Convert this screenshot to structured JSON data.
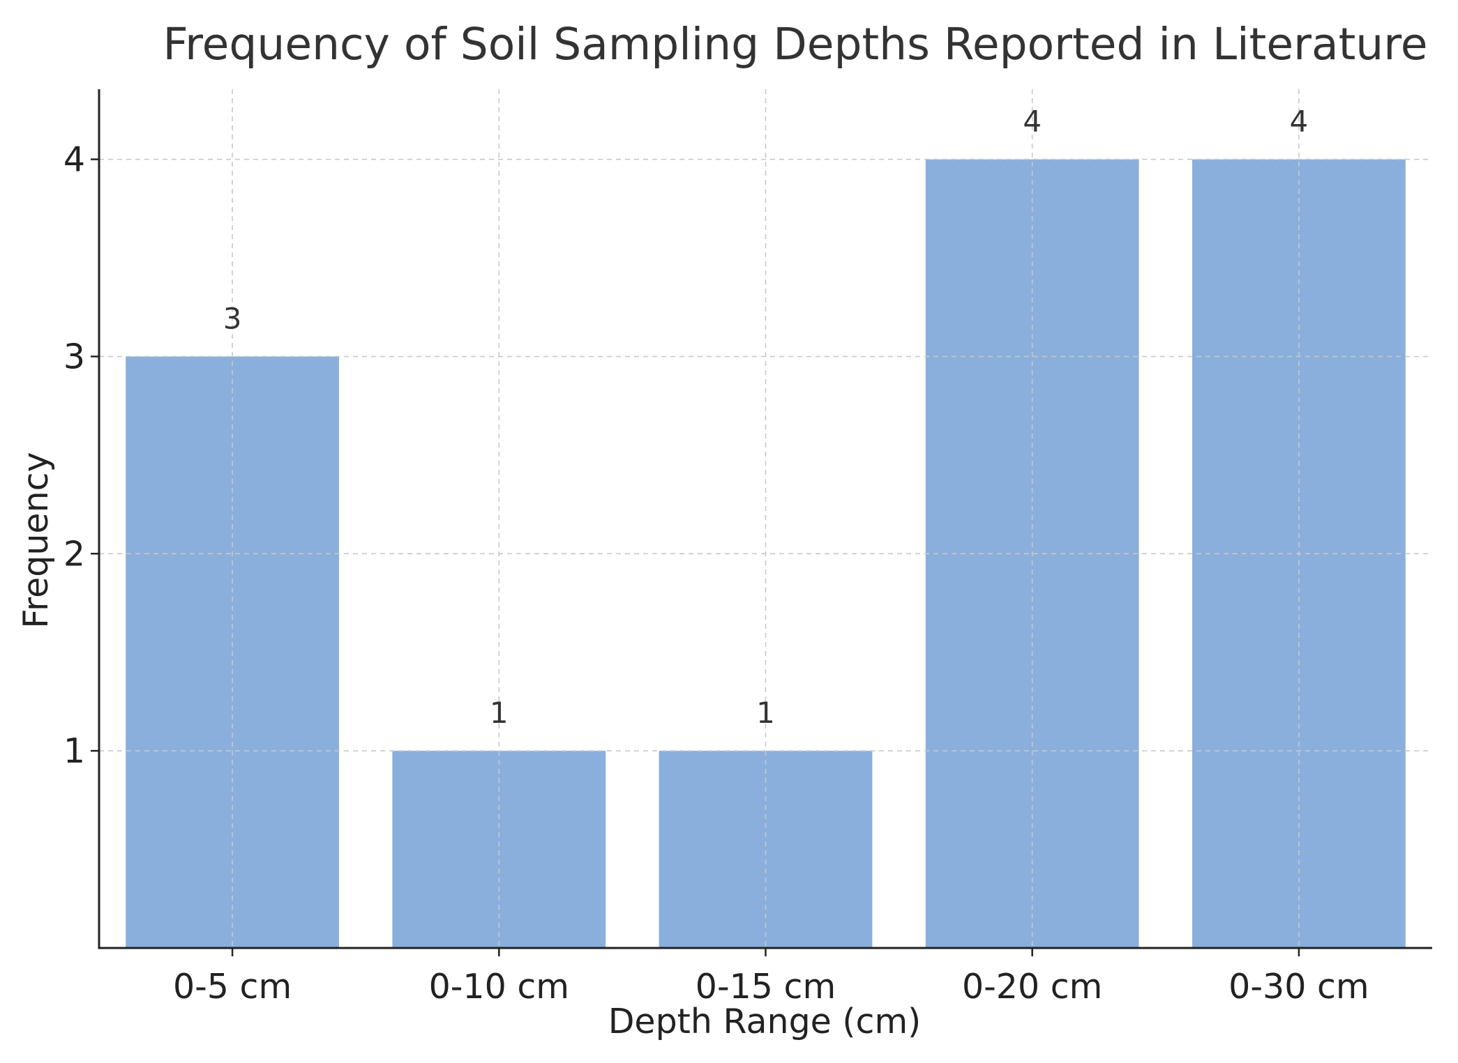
{
  "chart_data": {
    "type": "bar",
    "title": "Frequency of Soil Sampling Depths Reported in Literature",
    "xlabel": "Depth Range (cm)",
    "ylabel": "Frequency",
    "categories": [
      "0-5 cm",
      "0-10 cm",
      "0-15 cm",
      "0-20 cm",
      "0-30 cm"
    ],
    "values": [
      3,
      1,
      1,
      4,
      4
    ],
    "data_labels": [
      "3",
      "1",
      "1",
      "4",
      "4"
    ],
    "ylim": [
      0,
      4.2
    ],
    "yticks": [
      1,
      2,
      3,
      4
    ],
    "ytick_labels": [
      "1",
      "2",
      "3",
      "4"
    ],
    "grid": true,
    "colors": {
      "bar": "#8aafdc",
      "grid": "#c8c8c8",
      "axis": "#222222"
    }
  }
}
